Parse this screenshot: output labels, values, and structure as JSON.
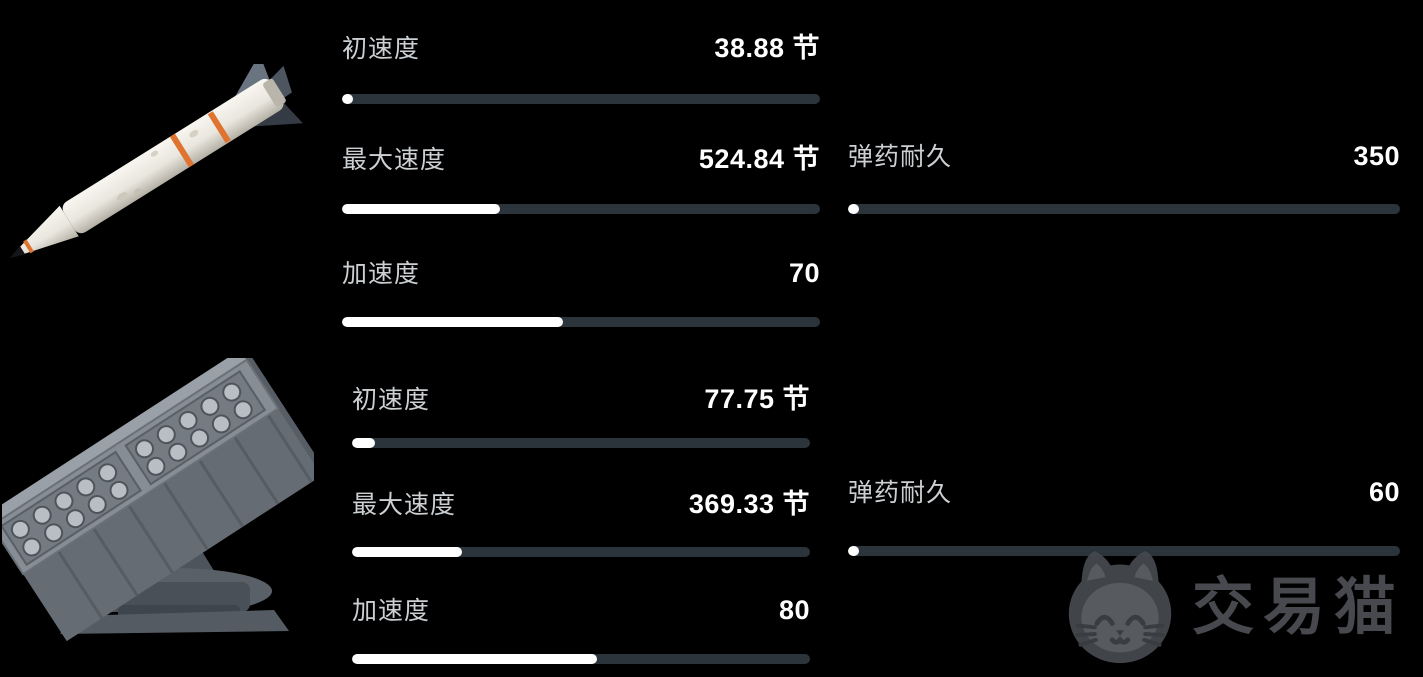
{
  "colors": {
    "background": "#000000",
    "bar_track": "#2b343b",
    "bar_fill": "#ffffff",
    "label_text": "#ccd0d3",
    "value_text": "#ffffff",
    "watermark": "#4a4d52",
    "missile_band_orange": "#df7430"
  },
  "icons": {
    "weapon1": "missile-3d-image",
    "weapon2": "rocket-launcher-3d-image",
    "watermark": "cat-mascot-logo"
  },
  "weapons": [
    {
      "icon": "missile-3d-image",
      "stats": [
        {
          "label": "初速度",
          "value": "38.88 节",
          "percent": 2.1
        },
        {
          "label": "最大速度",
          "value": "524.84 节",
          "percent": 33
        },
        {
          "label": "加速度",
          "value": "70",
          "percent": 46.2
        },
        {
          "label": "弹药耐久",
          "value": "350",
          "percent": 1.8
        }
      ]
    },
    {
      "icon": "rocket-launcher-3d-image",
      "stats": [
        {
          "label": "初速度",
          "value": "77.75 节",
          "percent": 5
        },
        {
          "label": "最大速度",
          "value": "369.33 节",
          "percent": 24
        },
        {
          "label": "加速度",
          "value": "80",
          "percent": 53.5
        },
        {
          "label": "弹药耐久",
          "value": "60",
          "percent": 1.8
        }
      ]
    }
  ],
  "watermark": {
    "text": "交易猫"
  }
}
